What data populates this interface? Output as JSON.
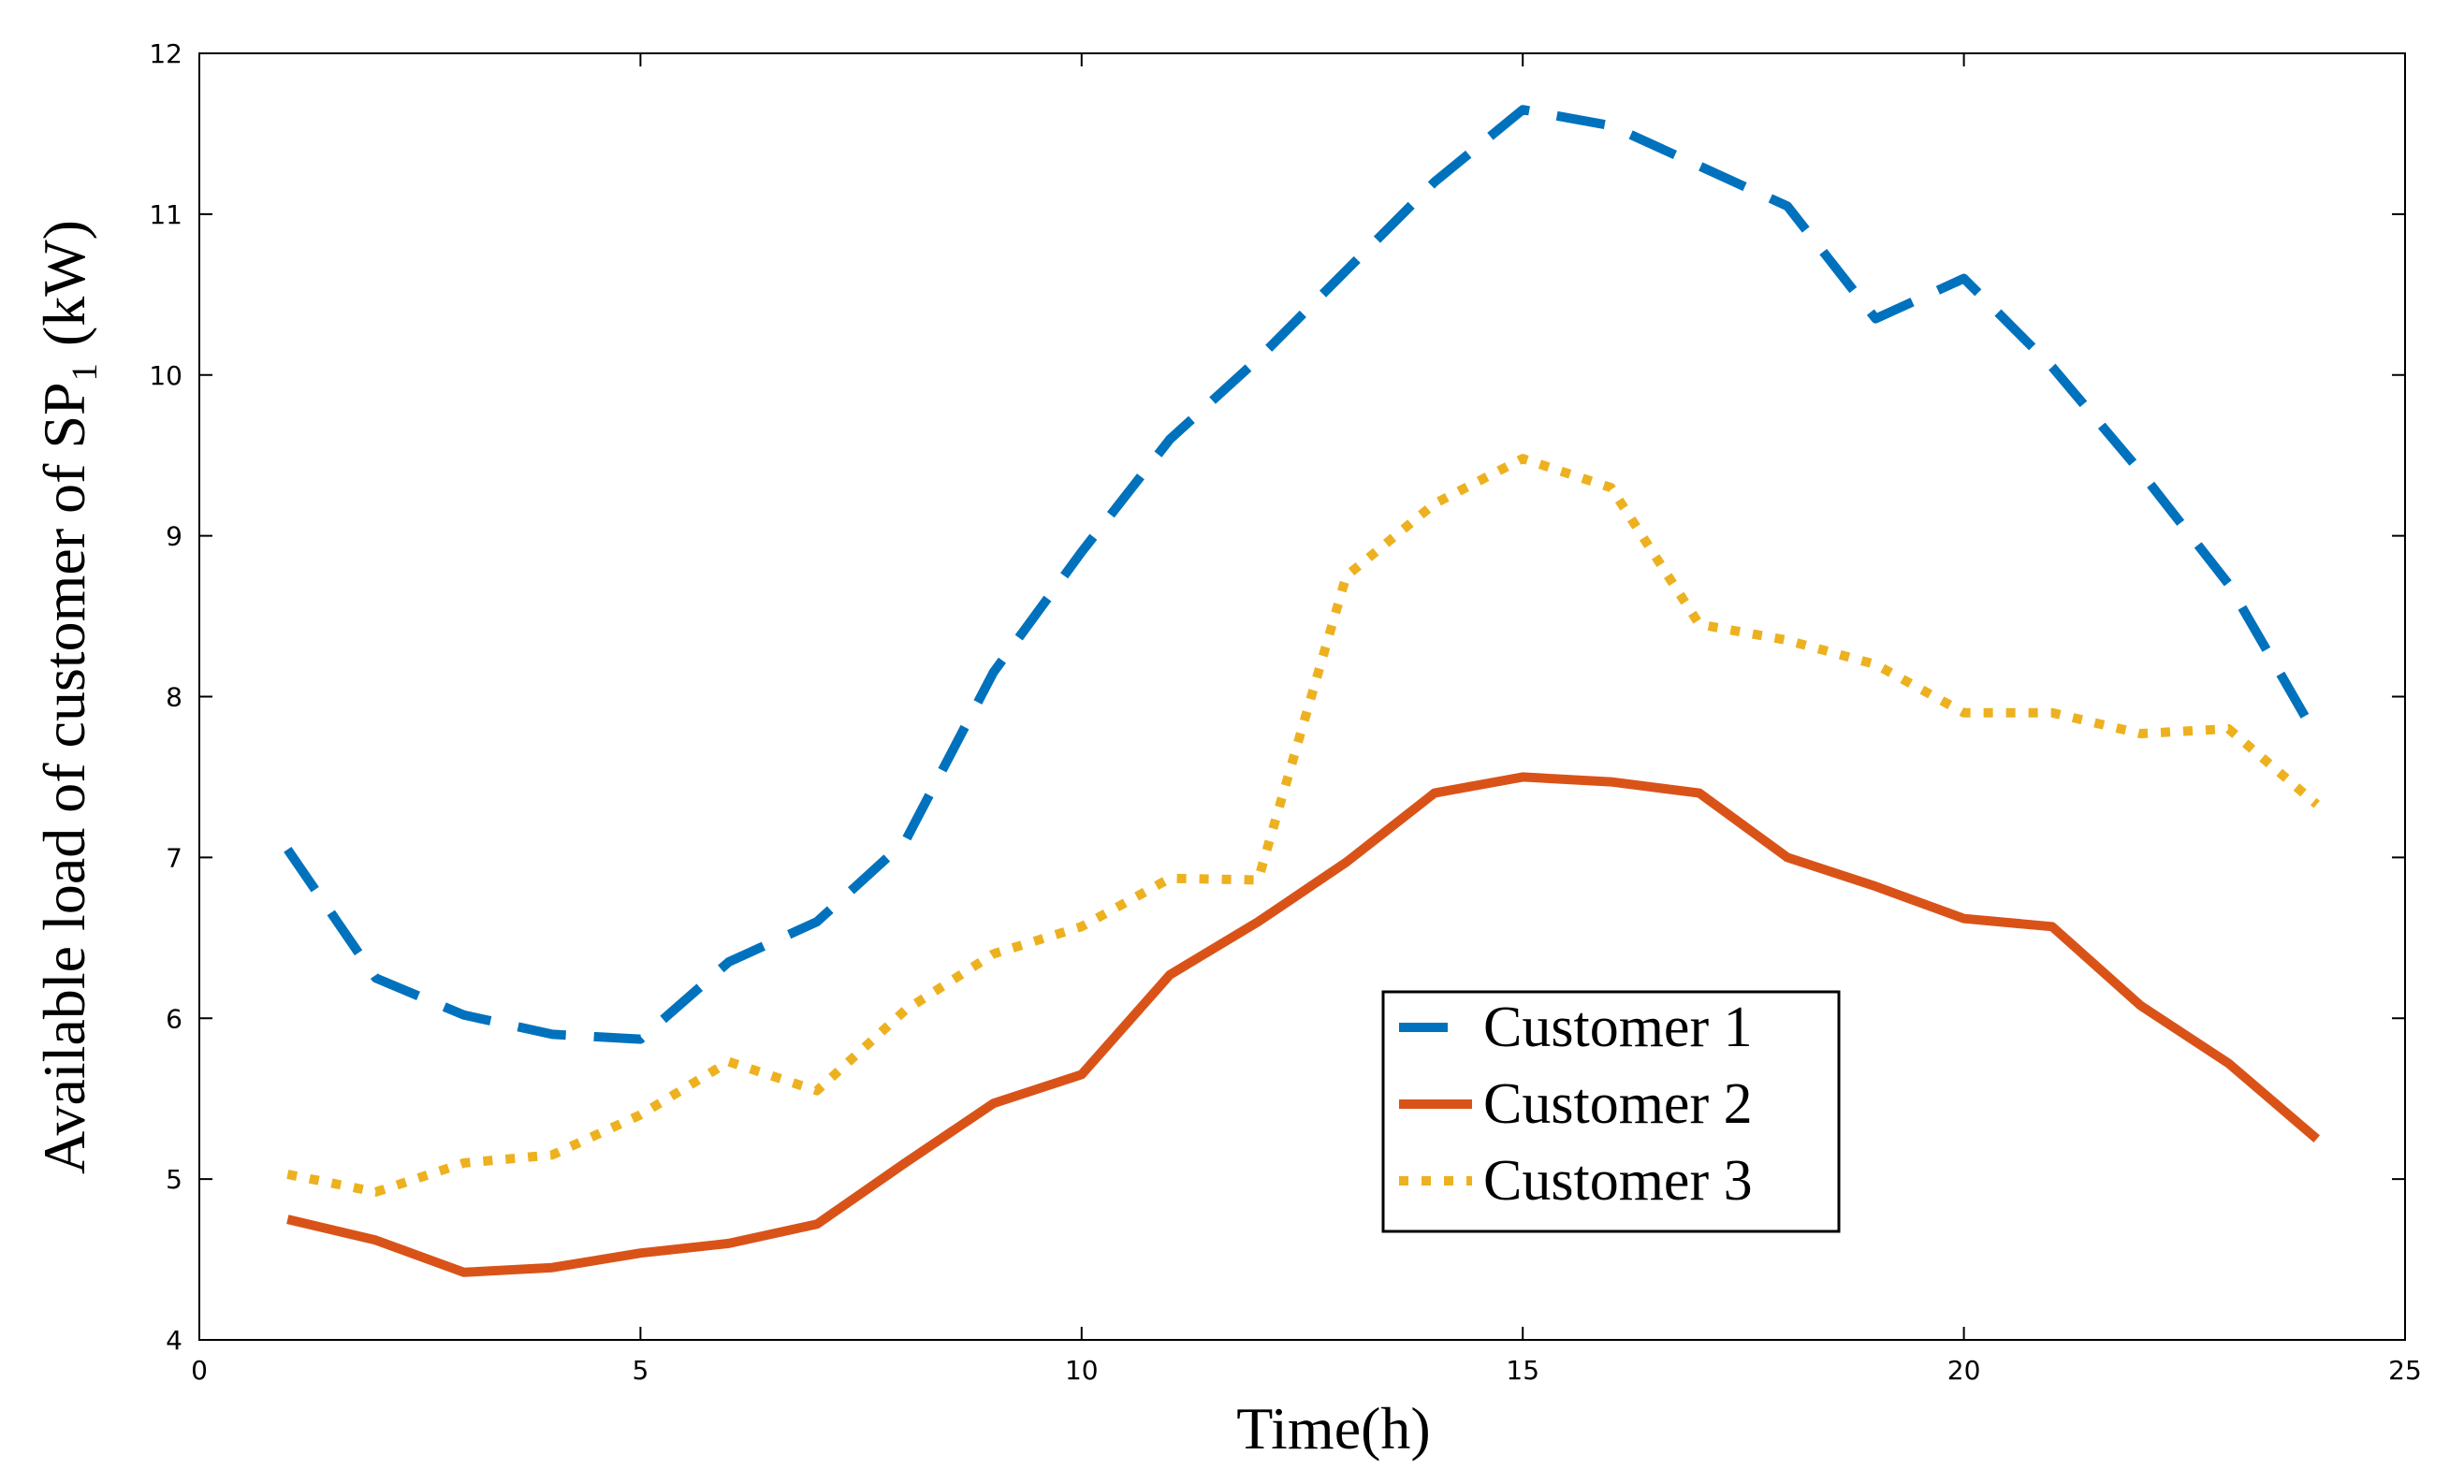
{
  "chart_data": {
    "type": "line",
    "xlabel": "Time(h)",
    "ylabel": "Available load of customer of SP₁ (kW)",
    "xlim": [
      0,
      25
    ],
    "ylim": [
      4,
      12
    ],
    "xticks": [
      0,
      5,
      10,
      15,
      20,
      25
    ],
    "yticks": [
      4,
      5,
      6,
      7,
      8,
      9,
      10,
      11,
      12
    ],
    "grid": false,
    "legend_position": "lower-center",
    "x": [
      1,
      2,
      3,
      4,
      5,
      6,
      7,
      8,
      9,
      10,
      11,
      12,
      13,
      14,
      15,
      16,
      17,
      18,
      19,
      20,
      21,
      22,
      23,
      24
    ],
    "series": [
      {
        "name": "Customer 1",
        "color": "#0072BD",
        "style": "dashed",
        "values": [
          7.05,
          6.25,
          6.02,
          5.9,
          5.87,
          6.35,
          6.6,
          7.1,
          8.15,
          8.9,
          9.6,
          10.1,
          10.65,
          11.2,
          11.65,
          11.55,
          11.3,
          11.05,
          10.35,
          10.6,
          10.05,
          9.4,
          8.7,
          7.75
        ]
      },
      {
        "name": "Customer 2",
        "color": "#D95319",
        "style": "solid",
        "values": [
          4.75,
          4.62,
          4.42,
          4.45,
          4.54,
          4.6,
          4.72,
          5.1,
          5.47,
          5.65,
          6.27,
          6.6,
          6.97,
          7.4,
          7.5,
          7.47,
          7.4,
          7.0,
          6.82,
          6.62,
          6.57,
          6.08,
          5.72,
          5.25
        ]
      },
      {
        "name": "Customer 3",
        "color": "#EDB120",
        "style": "dotted",
        "values": [
          5.03,
          4.92,
          5.1,
          5.15,
          5.4,
          5.73,
          5.55,
          6.05,
          6.4,
          6.57,
          6.87,
          6.86,
          8.75,
          9.2,
          9.48,
          9.3,
          8.45,
          8.35,
          8.2,
          7.9,
          7.9,
          7.77,
          7.8,
          7.33
        ]
      }
    ]
  }
}
